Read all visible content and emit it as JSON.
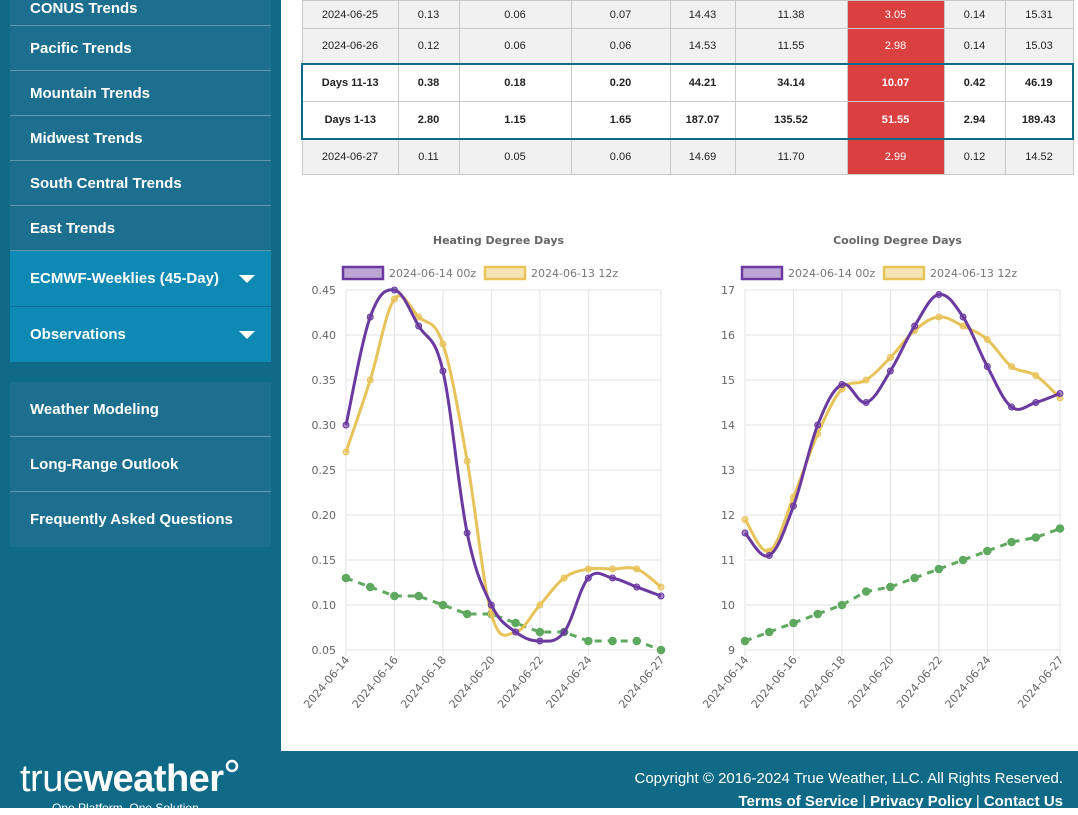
{
  "sidebar": {
    "group1": [
      {
        "label": "CONUS Trends"
      },
      {
        "label": "Pacific Trends"
      },
      {
        "label": "Mountain Trends"
      },
      {
        "label": "Midwest Trends"
      },
      {
        "label": "South Central Trends"
      },
      {
        "label": "East Trends"
      },
      {
        "label": "ECMWF-Weeklies (45-Day)"
      },
      {
        "label": "Observations"
      }
    ],
    "group2": [
      {
        "label": "Weather Modeling"
      },
      {
        "label": "Long-Range Outlook"
      },
      {
        "label": "Frequently Asked Questions"
      }
    ]
  },
  "table": {
    "rows": [
      [
        "2024-06-25",
        "0.13",
        "0.06",
        "0.07",
        "14.43",
        "11.38",
        "3.05",
        "0.14",
        "15.31"
      ],
      [
        "2024-06-26",
        "0.12",
        "0.06",
        "0.06",
        "14.53",
        "11.55",
        "2.98",
        "0.14",
        "15.03"
      ],
      [
        "Days 11-13",
        "0.38",
        "0.18",
        "0.20",
        "44.21",
        "34.14",
        "10.07",
        "0.42",
        "46.19"
      ],
      [
        "Days 1-13",
        "2.80",
        "1.15",
        "1.65",
        "187.07",
        "135.52",
        "51.55",
        "2.94",
        "189.43"
      ],
      [
        "2024-06-27",
        "0.11",
        "0.05",
        "0.06",
        "14.69",
        "11.70",
        "2.99",
        "0.12",
        "14.52"
      ]
    ]
  },
  "chart_data": [
    {
      "type": "line",
      "title": "Heating Degree Days",
      "x": [
        "2024-06-14",
        "2024-06-15",
        "2024-06-16",
        "2024-06-17",
        "2024-06-18",
        "2024-06-19",
        "2024-06-20",
        "2024-06-21",
        "2024-06-22",
        "2024-06-23",
        "2024-06-24",
        "2024-06-25",
        "2024-06-26",
        "2024-06-27"
      ],
      "xticks": [
        "2024-06-14",
        "2024-06-16",
        "2024-06-18",
        "2024-06-20",
        "2024-06-22",
        "2024-06-24",
        "2024-06-27"
      ],
      "ylim": [
        0.05,
        0.45
      ],
      "yticks": [
        "0.45",
        "0.40",
        "0.35",
        "0.30",
        "0.25",
        "0.20",
        "0.15",
        "0.10",
        "0.05"
      ],
      "series": [
        {
          "name": "2024-06-14 00z",
          "color": "#6a3aa0",
          "values": [
            0.3,
            0.42,
            0.45,
            0.41,
            0.36,
            0.18,
            0.1,
            0.07,
            0.06,
            0.07,
            0.13,
            0.13,
            0.12,
            0.11
          ]
        },
        {
          "name": "2024-06-13 12z",
          "color": "#e8c35a",
          "values": [
            0.27,
            0.35,
            0.44,
            0.42,
            0.39,
            0.26,
            0.09,
            0.07,
            0.1,
            0.13,
            0.14,
            0.14,
            0.14,
            0.12
          ]
        },
        {
          "color": "#5fa85f",
          "dashed": true,
          "values": [
            0.13,
            0.12,
            0.11,
            0.11,
            0.1,
            0.09,
            0.09,
            0.08,
            0.07,
            0.07,
            0.06,
            0.06,
            0.06,
            0.05
          ]
        }
      ]
    },
    {
      "type": "line",
      "title": "Cooling Degree Days",
      "x": [
        "2024-06-14",
        "2024-06-15",
        "2024-06-16",
        "2024-06-17",
        "2024-06-18",
        "2024-06-19",
        "2024-06-20",
        "2024-06-21",
        "2024-06-22",
        "2024-06-23",
        "2024-06-24",
        "2024-06-25",
        "2024-06-26",
        "2024-06-27"
      ],
      "xticks": [
        "2024-06-14",
        "2024-06-16",
        "2024-06-18",
        "2024-06-20",
        "2024-06-22",
        "2024-06-24",
        "2024-06-27"
      ],
      "ylim": [
        9,
        17
      ],
      "yticks": [
        "17",
        "16",
        "15",
        "14",
        "13",
        "12",
        "11",
        "10",
        "9"
      ],
      "series": [
        {
          "name": "2024-06-14 00z",
          "color": "#6a3aa0",
          "values": [
            11.6,
            11.1,
            12.2,
            14.0,
            14.9,
            14.5,
            15.2,
            16.2,
            16.9,
            16.4,
            15.3,
            14.4,
            14.5,
            14.7
          ]
        },
        {
          "name": "2024-06-13 12z",
          "color": "#e8c35a",
          "values": [
            11.9,
            11.2,
            12.4,
            13.8,
            14.8,
            15.0,
            15.5,
            16.1,
            16.4,
            16.2,
            15.9,
            15.3,
            15.1,
            14.6
          ]
        },
        {
          "color": "#5fa85f",
          "dashed": true,
          "values": [
            9.2,
            9.4,
            9.6,
            9.8,
            10.0,
            10.3,
            10.4,
            10.6,
            10.8,
            11.0,
            11.2,
            11.4,
            11.5,
            11.7
          ]
        }
      ]
    }
  ],
  "footer": {
    "logo_true": "true",
    "logo_weather": "weather",
    "tagline": "One Platform, One Solution",
    "copyright": "Copyright © 2016-2024 True Weather, LLC. All Rights Reserved.",
    "links": [
      "Terms of Service",
      "Privacy Policy",
      "Contact Us"
    ]
  }
}
